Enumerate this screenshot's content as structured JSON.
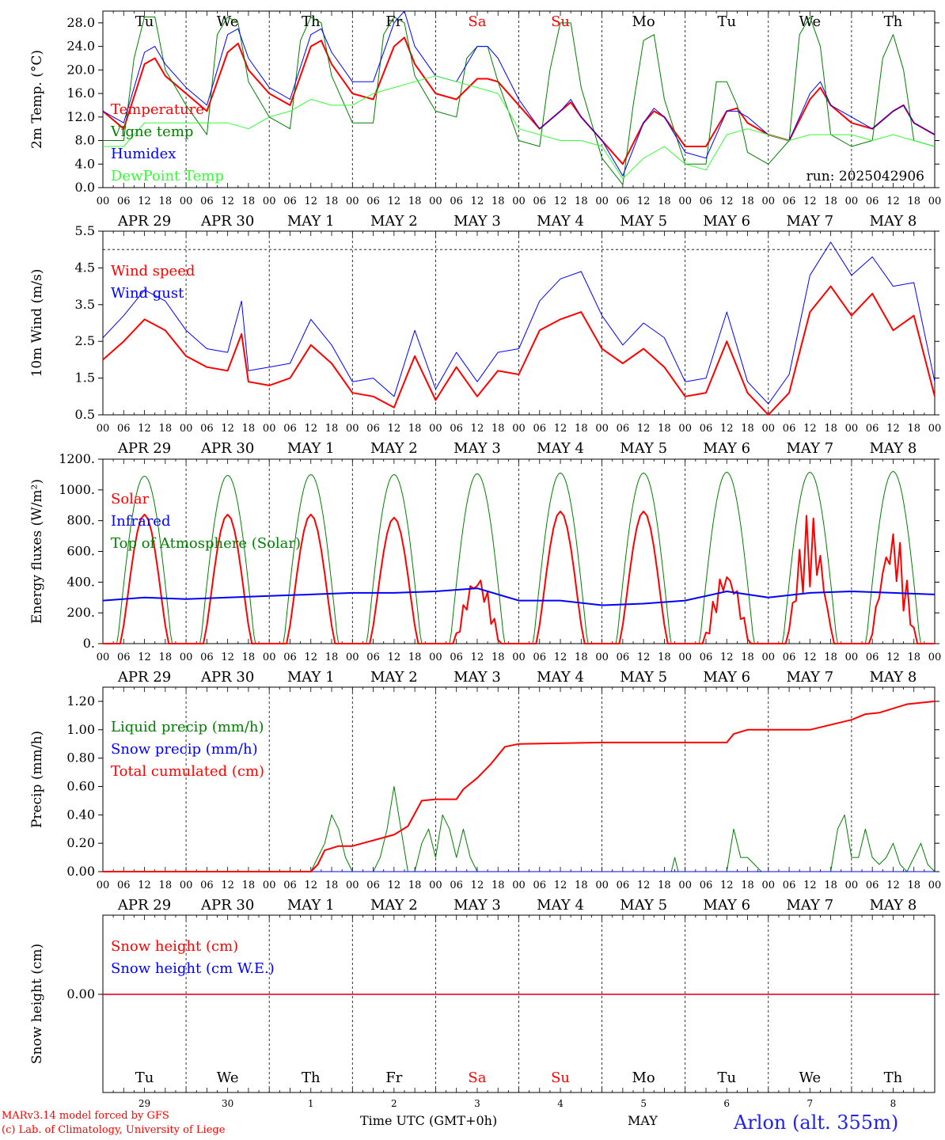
{
  "chart_data": [
    {
      "type": "line",
      "ylabel": "2m Temp. (°C)",
      "ylim": [
        0,
        30
      ],
      "yticks": [
        "0.0",
        "4.0",
        "8.0",
        "12.0",
        "16.0",
        "20.0",
        "24.0",
        "28.0"
      ],
      "ytick_values": [
        0,
        4,
        8,
        12,
        16,
        20,
        24,
        28
      ],
      "weekday_labels": [
        {
          "text": "Tu",
          "color": "#000000"
        },
        {
          "text": "We",
          "color": "#000000"
        },
        {
          "text": "Th",
          "color": "#000000"
        },
        {
          "text": "Fr",
          "color": "#000000"
        },
        {
          "text": "Sa",
          "color": "#ff0000"
        },
        {
          "text": "Su",
          "color": "#ff0000"
        },
        {
          "text": "Mo",
          "color": "#000000"
        },
        {
          "text": "Tu",
          "color": "#000000"
        },
        {
          "text": "We",
          "color": "#000000"
        },
        {
          "text": "Th",
          "color": "#000000"
        }
      ],
      "run_label": "run: 2025042906",
      "series": [
        {
          "name": "Temperature",
          "color": "#ff0000",
          "width": 2,
          "x": [
            0,
            6,
            12,
            15,
            18,
            24,
            30,
            36,
            39,
            42,
            48,
            54,
            60,
            63,
            66,
            72,
            78,
            84,
            87,
            90,
            96,
            102,
            108,
            111,
            114,
            120,
            126,
            132,
            135,
            138,
            144,
            150,
            156,
            159,
            162,
            168,
            174,
            180,
            183,
            186,
            192,
            198,
            204,
            207,
            210,
            216,
            222,
            228,
            231,
            234,
            240
          ],
          "y": [
            13,
            10,
            21,
            22,
            19,
            16,
            13,
            23,
            24.5,
            20,
            16,
            14,
            24,
            25,
            21,
            16,
            15,
            24,
            25.5,
            21,
            16,
            15,
            18.5,
            18.5,
            18,
            14,
            10,
            13,
            14.5,
            12,
            8,
            4,
            11,
            13,
            12,
            7,
            7,
            13,
            13.5,
            11,
            9,
            8,
            15,
            17,
            14,
            11,
            10,
            13,
            14,
            11,
            9
          ]
        },
        {
          "name": "Vigne temp",
          "color": "#008000",
          "width": 1,
          "x": [
            0,
            6,
            9,
            12,
            15,
            18,
            24,
            30,
            33,
            36,
            39,
            42,
            48,
            54,
            57,
            60,
            63,
            66,
            72,
            78,
            81,
            84,
            87,
            90,
            96,
            102,
            105,
            108,
            111,
            114,
            120,
            126,
            129,
            132,
            135,
            138,
            144,
            150,
            153,
            156,
            159,
            162,
            168,
            174,
            177,
            180,
            183,
            186,
            192,
            198,
            201,
            204,
            207,
            210,
            216,
            222,
            225,
            228,
            231,
            234,
            240
          ],
          "y": [
            8,
            8,
            22,
            29,
            29,
            20,
            14,
            9,
            26,
            29,
            28,
            18,
            12,
            10,
            25,
            29,
            28,
            19,
            11,
            11,
            26,
            29,
            28,
            19,
            13,
            12,
            22,
            24,
            24,
            18,
            8,
            7,
            20,
            28,
            28,
            17,
            5,
            0.5,
            14,
            25,
            26,
            15,
            4,
            4,
            18,
            18,
            14,
            6,
            4,
            8,
            26,
            29,
            24,
            9,
            7,
            8,
            22,
            26,
            20,
            8,
            7
          ]
        },
        {
          "name": "Humidex",
          "color": "#0000ff",
          "width": 1,
          "x": [
            0,
            6,
            12,
            15,
            18,
            24,
            30,
            36,
            39,
            42,
            48,
            54,
            60,
            63,
            66,
            72,
            78,
            84,
            87,
            90,
            96,
            102,
            108,
            111,
            114,
            120,
            126,
            132,
            135,
            138,
            144,
            150,
            156,
            159,
            162,
            168,
            174,
            180,
            183,
            186,
            192,
            198,
            204,
            207,
            210,
            216,
            222,
            228,
            231,
            234,
            240
          ],
          "y": [
            13,
            11,
            23,
            24,
            21,
            17,
            14,
            26,
            27,
            22,
            17,
            15,
            26,
            27,
            23,
            18,
            18,
            28,
            30,
            24,
            19,
            18,
            24,
            24,
            22,
            15,
            10,
            13,
            15,
            12,
            8,
            2,
            11,
            13.5,
            12,
            6,
            5,
            13,
            13,
            12,
            9,
            8,
            16,
            18,
            14,
            12,
            10,
            13,
            14,
            11,
            9
          ]
        },
        {
          "name": "DewPoint Temp",
          "color": "#33ff33",
          "width": 1,
          "x": [
            0,
            6,
            12,
            18,
            24,
            30,
            36,
            42,
            48,
            54,
            60,
            66,
            72,
            78,
            84,
            90,
            96,
            102,
            108,
            114,
            120,
            126,
            132,
            138,
            144,
            150,
            156,
            162,
            168,
            174,
            180,
            186,
            192,
            198,
            204,
            210,
            216,
            222,
            228,
            234,
            240
          ],
          "y": [
            7,
            7,
            11,
            11,
            11,
            11,
            11,
            10,
            12,
            13,
            15,
            14,
            14,
            16,
            17,
            18,
            19,
            18,
            17,
            16,
            10,
            9,
            8,
            8,
            7,
            1.5,
            5,
            7,
            4,
            3,
            9,
            10,
            9,
            8,
            9,
            9,
            9,
            8,
            9,
            8,
            7
          ]
        }
      ]
    },
    {
      "type": "line",
      "ylabel": "10m Wind (m/s)",
      "ylim": [
        0.5,
        5.5
      ],
      "yticks": [
        "0.5",
        "1.5",
        "2.5",
        "3.5",
        "4.5",
        "5.5"
      ],
      "ytick_values": [
        0.5,
        1.5,
        2.5,
        3.5,
        4.5,
        5.5
      ],
      "reference_line": 5.0,
      "series": [
        {
          "name": "Wind speed",
          "color": "#ff0000",
          "width": 2,
          "x": [
            0,
            6,
            12,
            18,
            24,
            30,
            36,
            40,
            42,
            48,
            54,
            60,
            66,
            72,
            78,
            84,
            90,
            96,
            102,
            108,
            114,
            120,
            126,
            132,
            138,
            144,
            150,
            156,
            162,
            168,
            174,
            180,
            186,
            192,
            198,
            204,
            210,
            216,
            222,
            228,
            234,
            240
          ],
          "y": [
            2.0,
            2.5,
            3.1,
            2.8,
            2.1,
            1.8,
            1.7,
            2.7,
            1.4,
            1.3,
            1.5,
            2.4,
            1.9,
            1.1,
            1.0,
            0.7,
            2.1,
            0.9,
            1.8,
            1.0,
            1.7,
            1.6,
            2.8,
            3.1,
            3.3,
            2.3,
            1.9,
            2.3,
            1.8,
            1.0,
            1.1,
            2.5,
            1.1,
            0.5,
            1.1,
            3.3,
            4.0,
            3.2,
            3.8,
            2.8,
            3.2,
            1.0
          ]
        },
        {
          "name": "Wind gust",
          "color": "#0000ff",
          "width": 1,
          "x": [
            0,
            6,
            12,
            18,
            24,
            30,
            36,
            40,
            42,
            48,
            54,
            60,
            66,
            72,
            78,
            84,
            90,
            96,
            102,
            108,
            114,
            120,
            126,
            132,
            138,
            144,
            150,
            156,
            162,
            168,
            174,
            180,
            186,
            192,
            198,
            204,
            210,
            216,
            222,
            228,
            234,
            240
          ],
          "y": [
            2.6,
            3.2,
            3.9,
            3.6,
            2.8,
            2.3,
            2.2,
            3.6,
            1.7,
            1.8,
            1.9,
            3.1,
            2.4,
            1.4,
            1.5,
            1.0,
            2.8,
            1.2,
            2.2,
            1.4,
            2.2,
            2.3,
            3.6,
            4.2,
            4.4,
            3.2,
            2.4,
            3.0,
            2.6,
            1.4,
            1.5,
            3.3,
            1.4,
            0.8,
            1.6,
            4.3,
            5.2,
            4.3,
            4.8,
            4.0,
            4.1,
            1.4
          ]
        }
      ]
    },
    {
      "type": "line",
      "ylabel": "Energy fluxes (W/m²)",
      "ylim": [
        0,
        1200
      ],
      "yticks": [
        "0.",
        "200.",
        "400.",
        "600.",
        "800.",
        "1000.",
        "1200."
      ],
      "ytick_values": [
        0,
        200,
        400,
        600,
        800,
        1000,
        1200
      ],
      "series": [
        {
          "name": "Solar",
          "color": "#ff0000",
          "width": 2,
          "day_peaks": [
            840,
            840,
            840,
            820,
            480,
            860,
            860,
            510,
            860,
            760
          ],
          "cloudy_days": [
            4,
            7,
            8,
            9
          ]
        },
        {
          "name": "Infrared",
          "color": "#0000ff",
          "width": 2,
          "x": [
            0,
            12,
            24,
            36,
            48,
            60,
            72,
            84,
            96,
            108,
            120,
            132,
            144,
            156,
            168,
            180,
            192,
            204,
            216,
            228,
            240
          ],
          "y": [
            280,
            300,
            290,
            300,
            310,
            320,
            330,
            330,
            340,
            360,
            280,
            280,
            250,
            260,
            280,
            340,
            300,
            330,
            340,
            330,
            320
          ]
        },
        {
          "name": "Top of Atmosphere (Solar)",
          "color": "#008000",
          "width": 1,
          "day_peaks": [
            1090,
            1095,
            1100,
            1100,
            1105,
            1110,
            1110,
            1115,
            1115,
            1120
          ]
        }
      ]
    },
    {
      "type": "line",
      "ylabel": "Precip (mm/h)",
      "ylim": [
        0,
        1.3
      ],
      "yticks": [
        "0.00",
        "0.20",
        "0.40",
        "0.60",
        "0.80",
        "1.00",
        "1.20"
      ],
      "ytick_values": [
        0,
        0.2,
        0.4,
        0.6,
        0.8,
        1.0,
        1.2
      ],
      "series": [
        {
          "name": "Liquid precip (mm/h)",
          "color": "#008000",
          "width": 1,
          "x": [
            0,
            60,
            62,
            64,
            66,
            68,
            70,
            72,
            74,
            76,
            78,
            80,
            82,
            84,
            86,
            88,
            90,
            92,
            94,
            96,
            98,
            100,
            102,
            104,
            106,
            108,
            110,
            112,
            114,
            116,
            118,
            120,
            164,
            165,
            166,
            180,
            182,
            184,
            186,
            188,
            190,
            200,
            210,
            212,
            214,
            216,
            218,
            220,
            222,
            224,
            226,
            228,
            230,
            232,
            236,
            238,
            240
          ],
          "y": [
            0,
            0,
            0.1,
            0.2,
            0.4,
            0.3,
            0.1,
            0,
            0,
            0,
            0,
            0.1,
            0.3,
            0.6,
            0.3,
            0,
            0,
            0.2,
            0.3,
            0.1,
            0.4,
            0.3,
            0.1,
            0.3,
            0.1,
            0,
            0,
            0,
            0,
            0,
            0,
            0,
            0,
            0.1,
            0,
            0,
            0.3,
            0.1,
            0.1,
            0.05,
            0,
            0,
            0,
            0.3,
            0.4,
            0.1,
            0.1,
            0.3,
            0.1,
            0.05,
            0.1,
            0.2,
            0.05,
            0,
            0.2,
            0.05,
            0
          ]
        },
        {
          "name": "Snow precip (mm/h)",
          "color": "#0000ff",
          "width": 1,
          "x": [
            0,
            240
          ],
          "y": [
            0,
            0
          ]
        },
        {
          "name": "Total cumulated (cm)",
          "color": "#ff0000",
          "width": 2,
          "x": [
            0,
            60,
            62,
            64,
            68,
            72,
            84,
            88,
            92,
            96,
            102,
            104,
            108,
            112,
            116,
            120,
            144,
            180,
            182,
            186,
            204,
            216,
            220,
            224,
            232,
            240
          ],
          "y": [
            0,
            0,
            0.05,
            0.15,
            0.18,
            0.18,
            0.26,
            0.32,
            0.5,
            0.51,
            0.51,
            0.58,
            0.66,
            0.76,
            0.88,
            0.9,
            0.91,
            0.91,
            0.97,
            1.0,
            1.0,
            1.07,
            1.11,
            1.12,
            1.18,
            1.2
          ]
        }
      ]
    },
    {
      "type": "line",
      "ylabel": "Snow height (cm)",
      "ytick_label": "0.00",
      "series": [
        {
          "name": "Snow height (cm)",
          "color": "#ff0000",
          "x": [
            0,
            240
          ],
          "y": [
            0,
            0
          ]
        },
        {
          "name": "Snow height (cm W.E.)",
          "color": "#0000ff",
          "x": [
            0,
            240
          ],
          "y": [
            0,
            0
          ]
        }
      ]
    }
  ],
  "x_axis": {
    "hour_ticks": [
      "00",
      "06",
      "12",
      "18"
    ],
    "end_tick": "00",
    "date_labels": [
      "APR 29",
      "APR 30",
      "MAY  1",
      "MAY  2",
      "MAY  3",
      "MAY  4",
      "MAY  5",
      "MAY  6",
      "MAY  7",
      "MAY  8"
    ],
    "bottom_weekdays": [
      {
        "text": "Tu",
        "color": "#000000"
      },
      {
        "text": "We",
        "color": "#000000"
      },
      {
        "text": "Th",
        "color": "#000000"
      },
      {
        "text": "Fr",
        "color": "#000000"
      },
      {
        "text": "Sa",
        "color": "#ff0000"
      },
      {
        "text": "Su",
        "color": "#ff0000"
      },
      {
        "text": "Mo",
        "color": "#000000"
      },
      {
        "text": "Tu",
        "color": "#000000"
      },
      {
        "text": "We",
        "color": "#000000"
      },
      {
        "text": "Th",
        "color": "#000000"
      }
    ],
    "bottom_daynums": [
      "29",
      "30",
      "1",
      "2",
      "3",
      "4",
      "5",
      "6",
      "7",
      "8"
    ]
  },
  "footer": {
    "credit_line1": "MARv3.14 model forced by GFS",
    "credit_line2": "(c) Lab. of Climatology, University of Liege",
    "time_label": "Time UTC (GMT+0h)",
    "month_label": "MAY",
    "station": "Arlon (alt. 355m)"
  }
}
